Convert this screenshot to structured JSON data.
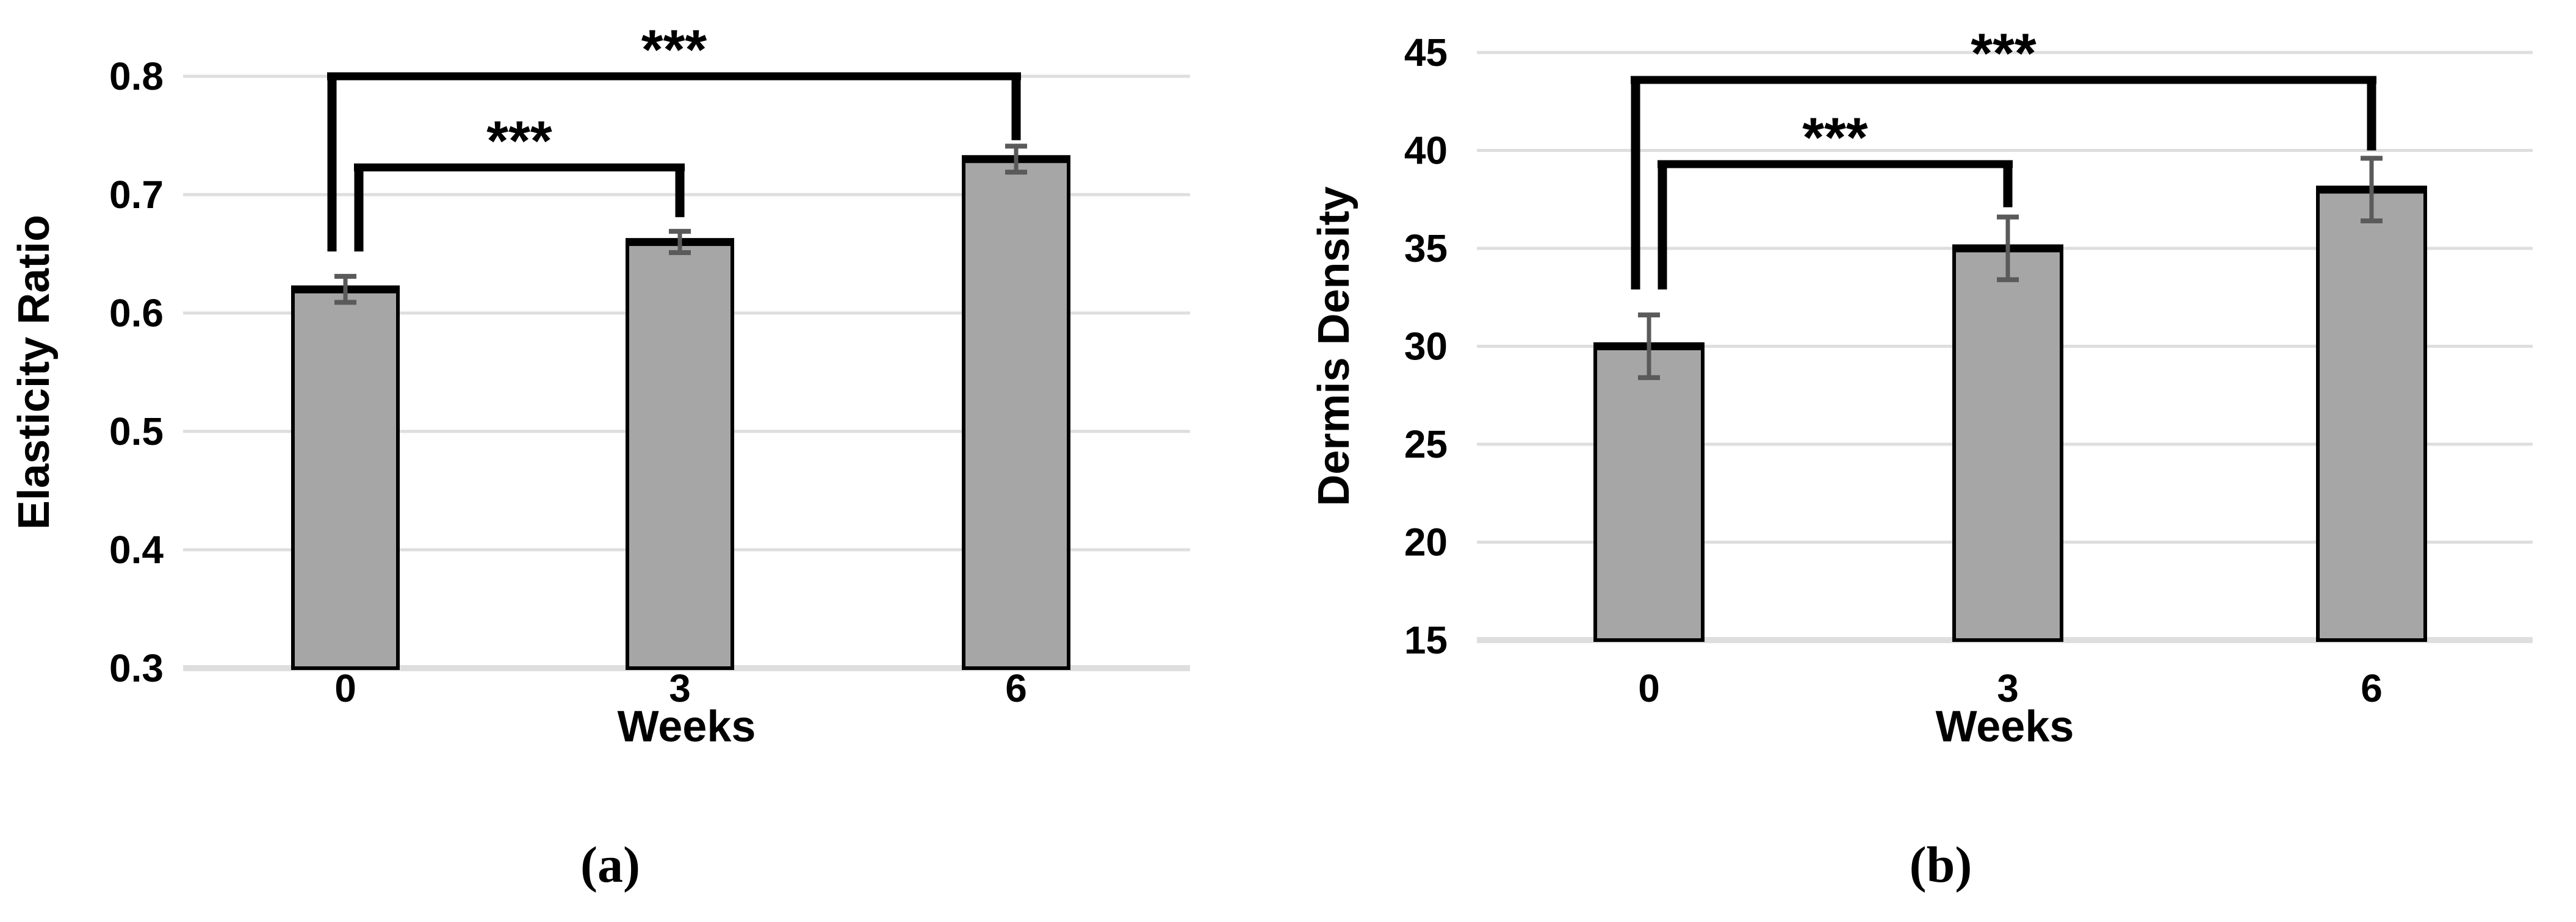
{
  "page": {
    "background": "#ffffff",
    "figure_type": "two-panel bar chart with significance brackets"
  },
  "chart_data": [
    {
      "panel": "a",
      "type": "bar",
      "caption": "(a)",
      "title": "",
      "xlabel": "Weeks",
      "ylabel": "Elasticity Ratio",
      "categories": [
        "0",
        "3",
        "6"
      ],
      "values": [
        0.62,
        0.66,
        0.73
      ],
      "errors": [
        0.011,
        0.009,
        0.011
      ],
      "ylim": [
        0.3,
        0.8
      ],
      "yticks": [
        0.3,
        0.4,
        0.5,
        0.6,
        0.7,
        0.8
      ],
      "ytick_labels": [
        "0.3",
        "0.4",
        "0.5",
        "0.6",
        "0.7",
        "0.8"
      ],
      "grid": true,
      "legend_position": "none",
      "colors": {
        "bar_fill": "#a6a6a6",
        "bar_border": "#000000",
        "error_bar": "#5a5a5a",
        "gridline": "#dedede",
        "bracket": "#000000",
        "text": "#000000"
      },
      "significance": [
        {
          "pair": [
            0,
            1
          ],
          "label": "***",
          "level": 0.723,
          "drop_left_to": 0.652,
          "drop_right_to": 0.681
        },
        {
          "pair": [
            0,
            2
          ],
          "label": "***",
          "level": 0.8,
          "drop_left_to": 0.652,
          "drop_right_to": 0.746
        }
      ]
    },
    {
      "panel": "b",
      "type": "bar",
      "caption": "(b)",
      "title": "",
      "xlabel": "Weeks",
      "ylabel": "Dermis Density",
      "categories": [
        "0",
        "3",
        "6"
      ],
      "values": [
        30,
        35,
        38
      ],
      "errors": [
        1.6,
        1.6,
        1.6
      ],
      "ylim": [
        15,
        45
      ],
      "yticks": [
        15,
        20,
        25,
        30,
        35,
        40,
        45
      ],
      "ytick_labels": [
        "15",
        "20",
        "25",
        "30",
        "35",
        "40",
        "45"
      ],
      "grid": true,
      "legend_position": "none",
      "colors": {
        "bar_fill": "#a6a6a6",
        "bar_border": "#000000",
        "error_bar": "#5a5a5a",
        "gridline": "#dedede",
        "bracket": "#000000",
        "text": "#000000"
      },
      "significance": [
        {
          "pair": [
            0,
            1
          ],
          "label": "***",
          "level": 39.3,
          "drop_left_to": 32.9,
          "drop_right_to": 37.1
        },
        {
          "pair": [
            0,
            2
          ],
          "label": "***",
          "level": 43.6,
          "drop_left_to": 32.9,
          "drop_right_to": 40.0
        }
      ]
    }
  ]
}
